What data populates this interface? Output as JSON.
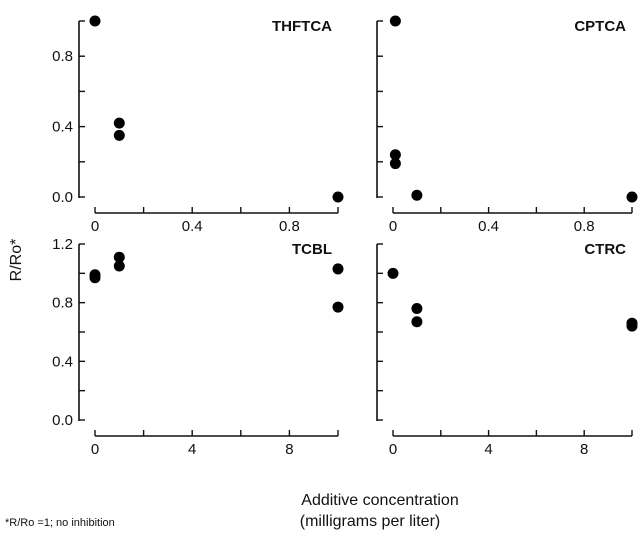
{
  "figure": {
    "ylabel": "R/Ro*",
    "xlabel_line1": "Additive concentration",
    "xlabel_line2": "(milligrams per liter)",
    "footnote": "*R/Ro =1; no inhibition"
  },
  "chart_data": [
    {
      "type": "scatter",
      "title": "THFTCA",
      "xlim": [
        0,
        1.0
      ],
      "ylim": [
        0,
        1.0
      ],
      "xticks": [
        0,
        0.2,
        0.4,
        0.6,
        0.8,
        1.0
      ],
      "xtick_labels": [
        "0",
        "",
        "0.4",
        "",
        "0.8",
        ""
      ],
      "yticks": [
        0,
        0.2,
        0.4,
        0.6,
        0.8,
        1.0
      ],
      "ytick_labels": [
        "0.0",
        "",
        "0.4",
        "",
        "0.8",
        ""
      ],
      "x": [
        0.0,
        0.1,
        0.1,
        1.0
      ],
      "y": [
        1.0,
        0.42,
        0.35,
        0.0
      ]
    },
    {
      "type": "scatter",
      "title": "CPTCA",
      "xlim": [
        0,
        1.0
      ],
      "ylim": [
        0,
        1.0
      ],
      "xticks": [
        0,
        0.2,
        0.4,
        0.6,
        0.8,
        1.0
      ],
      "xtick_labels": [
        "0",
        "",
        "0.4",
        "",
        "0.8",
        ""
      ],
      "yticks": [
        0,
        0.2,
        0.4,
        0.6,
        0.8,
        1.0
      ],
      "ytick_labels": [
        "",
        "",
        "",
        "",
        "",
        ""
      ],
      "x": [
        0.01,
        0.01,
        0.01,
        0.1,
        1.0
      ],
      "y": [
        1.0,
        0.24,
        0.19,
        0.01,
        0.0
      ]
    },
    {
      "type": "scatter",
      "title": "TCBL",
      "xlim": [
        0,
        10
      ],
      "ylim": [
        0,
        1.2
      ],
      "xticks": [
        0,
        2,
        4,
        6,
        8,
        10
      ],
      "xtick_labels": [
        "0",
        "",
        "4",
        "",
        "8",
        ""
      ],
      "yticks": [
        0,
        0.2,
        0.4,
        0.6,
        0.8,
        1.0,
        1.2
      ],
      "ytick_labels": [
        "0.0",
        "",
        "0.4",
        "",
        "0.8",
        "",
        "1.2"
      ],
      "x": [
        0,
        0,
        1,
        1,
        10,
        10
      ],
      "y": [
        0.99,
        0.97,
        1.11,
        1.05,
        1.03,
        0.77
      ]
    },
    {
      "type": "scatter",
      "title": "CTRC",
      "xlim": [
        0,
        10
      ],
      "ylim": [
        0,
        1.2
      ],
      "xticks": [
        0,
        2,
        4,
        6,
        8,
        10
      ],
      "xtick_labels": [
        "0",
        "",
        "4",
        "",
        "8",
        ""
      ],
      "yticks": [
        0,
        0.2,
        0.4,
        0.6,
        0.8,
        1.0,
        1.2
      ],
      "ytick_labels": [
        "",
        "",
        "",
        "",
        "",
        "",
        ""
      ],
      "x": [
        0,
        1,
        1,
        10,
        10
      ],
      "y": [
        1.0,
        0.76,
        0.67,
        0.66,
        0.64
      ]
    }
  ]
}
